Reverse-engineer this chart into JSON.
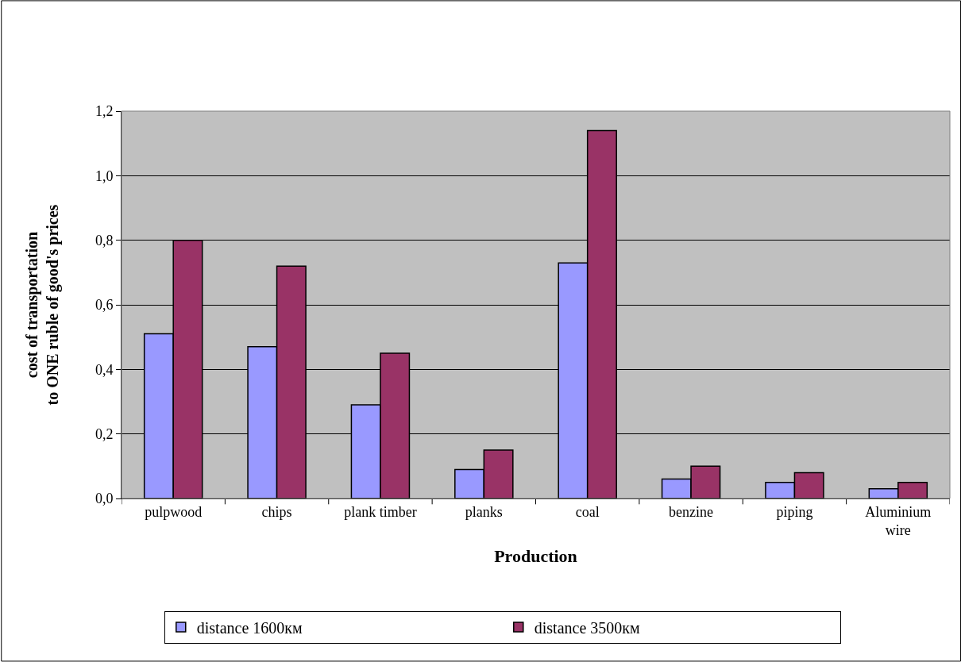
{
  "chart_data": {
    "type": "bar",
    "xlabel": "Production",
    "ylabel": "cost of transportation\nto ONE ruble of good's prices",
    "categories": [
      "pulpwood",
      "chips",
      "plank timber",
      "planks",
      "coal",
      "benzine",
      "piping",
      "Aluminium wire"
    ],
    "series": [
      {
        "name": "distance 1600км",
        "color": "#9999ff",
        "values": [
          0.51,
          0.47,
          0.29,
          0.09,
          0.73,
          0.06,
          0.05,
          0.03
        ]
      },
      {
        "name": "distance 3500км",
        "color": "#993366",
        "values": [
          0.8,
          0.72,
          0.45,
          0.15,
          1.14,
          0.1,
          0.08,
          0.05
        ]
      }
    ],
    "ylim": [
      0,
      1.2
    ],
    "yticks": [
      {
        "value": 0,
        "label": "0,0"
      },
      {
        "value": 0.2,
        "label": "0,2"
      },
      {
        "value": 0.4,
        "label": "0,4"
      },
      {
        "value": 0.6,
        "label": "0,6"
      },
      {
        "value": 0.8,
        "label": "0,8"
      },
      {
        "value": 1.0,
        "label": "1,0"
      },
      {
        "value": 1.2,
        "label": "1,2"
      }
    ],
    "grid": "y",
    "legend": "bottom"
  }
}
